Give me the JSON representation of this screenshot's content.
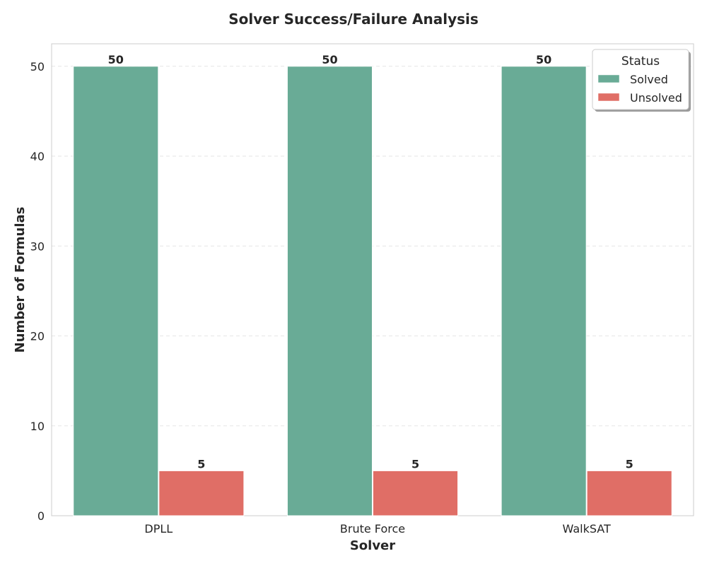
{
  "chart_data": {
    "type": "bar",
    "title": "Solver Success/Failure Analysis",
    "xlabel": "Solver",
    "ylabel": "Number of Formulas",
    "categories": [
      "DPLL",
      "Brute Force",
      "WalkSAT"
    ],
    "series": [
      {
        "name": "Solved",
        "values": [
          50,
          50,
          50
        ],
        "color": "#69ab96"
      },
      {
        "name": "Unsolved",
        "values": [
          5,
          5,
          5
        ],
        "color": "#e06e66"
      }
    ],
    "ylim": [
      0,
      52.5
    ],
    "yticks": [
      0,
      10,
      20,
      30,
      40,
      50
    ],
    "grid": true,
    "legend": {
      "title": "Status",
      "placement": "top-right"
    }
  }
}
